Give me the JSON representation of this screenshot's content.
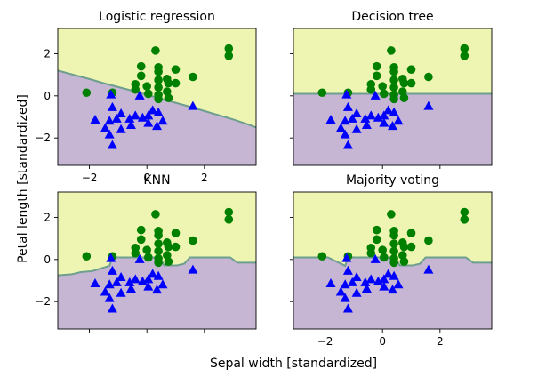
{
  "figure": {
    "xlabel": "Sepal width [standardized]",
    "ylabel": "Petal length [standardized]",
    "region_colors": {
      "upper": "#eef5b2",
      "lower": "#c6b6d4",
      "boundary": "#6e9e8e"
    },
    "marker_colors": {
      "class_circle": "#008000",
      "class_triangle": "#0000ff"
    }
  },
  "chart_data": [
    {
      "type": "scatter",
      "title": "Logistic regression",
      "xlim": [
        -3.1,
        3.8
      ],
      "ylim": [
        -3.3,
        3.2
      ],
      "xticks": [
        "−2",
        "0",
        "2"
      ],
      "yticks": [
        "2",
        "0",
        "−2"
      ],
      "decision_boundary": {
        "x": [
          -3.1,
          -2.5,
          -2.0,
          -1.5,
          -1.0,
          -0.5,
          0.0,
          0.5,
          1.0,
          1.5,
          2.0,
          2.5,
          3.0,
          3.5,
          3.8
        ],
        "y": [
          1.2,
          0.98,
          0.8,
          0.6,
          0.42,
          0.24,
          0.05,
          -0.14,
          -0.33,
          -0.52,
          -0.72,
          -0.92,
          -1.12,
          -1.35,
          -1.5
        ]
      },
      "series": [
        {
          "marker": "circle",
          "points": [
            [
              -2.1,
              0.15
            ],
            [
              -1.2,
              0.15
            ],
            [
              -0.4,
              0.3
            ],
            [
              -0.4,
              0.55
            ],
            [
              -0.2,
              1.4
            ],
            [
              -0.2,
              0.95
            ],
            [
              0.0,
              0.45
            ],
            [
              0.05,
              0.1
            ],
            [
              0.3,
              2.15
            ],
            [
              0.4,
              1.35
            ],
            [
              0.4,
              1.15
            ],
            [
              0.4,
              0.75
            ],
            [
              0.4,
              0.4
            ],
            [
              0.4,
              0.05
            ],
            [
              0.4,
              -0.15
            ],
            [
              0.7,
              0.8
            ],
            [
              0.7,
              0.2
            ],
            [
              0.75,
              0.6
            ],
            [
              0.75,
              -0.1
            ],
            [
              1.0,
              1.25
            ],
            [
              1.0,
              0.6
            ],
            [
              1.6,
              0.9
            ],
            [
              2.85,
              2.25
            ],
            [
              2.85,
              1.9
            ]
          ]
        },
        {
          "marker": "triangle",
          "points": [
            [
              -1.8,
              -1.15
            ],
            [
              -1.45,
              -1.55
            ],
            [
              -1.3,
              -1.2
            ],
            [
              -1.3,
              -1.85
            ],
            [
              -1.2,
              -2.35
            ],
            [
              -1.2,
              -0.55
            ],
            [
              -1.05,
              -1.1
            ],
            [
              -0.9,
              -0.85
            ],
            [
              -0.9,
              -1.6
            ],
            [
              -0.6,
              -1.1
            ],
            [
              -0.55,
              -1.4
            ],
            [
              -0.4,
              -0.95
            ],
            [
              -0.15,
              -1.05
            ],
            [
              0.05,
              -0.95
            ],
            [
              0.05,
              -1.3
            ],
            [
              0.2,
              -0.7
            ],
            [
              0.35,
              -1.45
            ],
            [
              0.4,
              -0.8
            ],
            [
              0.55,
              -1.2
            ],
            [
              1.6,
              -0.5
            ],
            [
              -1.25,
              0.05
            ],
            [
              -0.25,
              0.0
            ]
          ]
        }
      ]
    },
    {
      "type": "scatter",
      "title": "Decision tree",
      "xlim": [
        -3.1,
        3.8
      ],
      "ylim": [
        -3.3,
        3.2
      ],
      "xticks": [],
      "yticks": [],
      "decision_boundary": {
        "x": [
          -3.1,
          3.8
        ],
        "y": [
          0.1,
          0.1
        ]
      },
      "series": [
        {
          "marker": "circle",
          "points": [
            [
              -2.1,
              0.15
            ],
            [
              -1.2,
              0.15
            ],
            [
              -0.4,
              0.3
            ],
            [
              -0.4,
              0.55
            ],
            [
              -0.2,
              1.4
            ],
            [
              -0.2,
              0.95
            ],
            [
              0.0,
              0.45
            ],
            [
              0.05,
              0.1
            ],
            [
              0.3,
              2.15
            ],
            [
              0.4,
              1.35
            ],
            [
              0.4,
              1.15
            ],
            [
              0.4,
              0.75
            ],
            [
              0.4,
              0.4
            ],
            [
              0.4,
              0.05
            ],
            [
              0.4,
              -0.15
            ],
            [
              0.7,
              0.8
            ],
            [
              0.7,
              0.2
            ],
            [
              0.75,
              0.6
            ],
            [
              0.75,
              -0.1
            ],
            [
              1.0,
              1.25
            ],
            [
              1.0,
              0.6
            ],
            [
              1.6,
              0.9
            ],
            [
              2.85,
              2.25
            ],
            [
              2.85,
              1.9
            ]
          ]
        },
        {
          "marker": "triangle",
          "points": [
            [
              -1.8,
              -1.15
            ],
            [
              -1.45,
              -1.55
            ],
            [
              -1.3,
              -1.2
            ],
            [
              -1.3,
              -1.85
            ],
            [
              -1.2,
              -2.35
            ],
            [
              -1.2,
              -0.55
            ],
            [
              -1.05,
              -1.1
            ],
            [
              -0.9,
              -0.85
            ],
            [
              -0.9,
              -1.6
            ],
            [
              -0.6,
              -1.1
            ],
            [
              -0.55,
              -1.4
            ],
            [
              -0.4,
              -0.95
            ],
            [
              -0.15,
              -1.05
            ],
            [
              0.05,
              -0.95
            ],
            [
              0.05,
              -1.3
            ],
            [
              0.2,
              -0.7
            ],
            [
              0.35,
              -1.45
            ],
            [
              0.4,
              -0.8
            ],
            [
              0.55,
              -1.2
            ],
            [
              1.6,
              -0.5
            ],
            [
              -1.25,
              0.05
            ],
            [
              -0.25,
              0.0
            ]
          ]
        }
      ]
    },
    {
      "type": "scatter",
      "title": "KNN",
      "xlim": [
        -3.1,
        3.8
      ],
      "ylim": [
        -3.3,
        3.2
      ],
      "xticks": [],
      "yticks": [
        "2",
        "0",
        "−2"
      ],
      "decision_boundary": {
        "x": [
          -3.1,
          -2.6,
          -2.3,
          -1.9,
          -1.3,
          -1.2,
          -0.4,
          0.45,
          0.6,
          1.05,
          1.3,
          1.5,
          2.0,
          2.5,
          2.9,
          3.15,
          3.8
        ],
        "y": [
          -0.75,
          -0.7,
          -0.6,
          -0.55,
          -0.3,
          0.1,
          0.1,
          0.1,
          -0.28,
          -0.28,
          -0.2,
          0.1,
          0.1,
          0.1,
          0.1,
          -0.15,
          -0.15
        ]
      },
      "series": [
        {
          "marker": "circle",
          "points": [
            [
              -2.1,
              0.15
            ],
            [
              -1.2,
              0.15
            ],
            [
              -0.4,
              0.3
            ],
            [
              -0.4,
              0.55
            ],
            [
              -0.2,
              1.4
            ],
            [
              -0.2,
              0.95
            ],
            [
              0.0,
              0.45
            ],
            [
              0.05,
              0.1
            ],
            [
              0.3,
              2.15
            ],
            [
              0.4,
              1.35
            ],
            [
              0.4,
              1.15
            ],
            [
              0.4,
              0.75
            ],
            [
              0.4,
              0.4
            ],
            [
              0.4,
              0.05
            ],
            [
              0.4,
              -0.15
            ],
            [
              0.7,
              0.8
            ],
            [
              0.7,
              0.2
            ],
            [
              0.75,
              0.6
            ],
            [
              0.75,
              -0.1
            ],
            [
              1.0,
              1.25
            ],
            [
              1.0,
              0.6
            ],
            [
              1.6,
              0.9
            ],
            [
              2.85,
              2.25
            ],
            [
              2.85,
              1.9
            ]
          ]
        },
        {
          "marker": "triangle",
          "points": [
            [
              -1.8,
              -1.15
            ],
            [
              -1.45,
              -1.55
            ],
            [
              -1.3,
              -1.2
            ],
            [
              -1.3,
              -1.85
            ],
            [
              -1.2,
              -2.35
            ],
            [
              -1.2,
              -0.55
            ],
            [
              -1.05,
              -1.1
            ],
            [
              -0.9,
              -0.85
            ],
            [
              -0.9,
              -1.6
            ],
            [
              -0.6,
              -1.1
            ],
            [
              -0.55,
              -1.4
            ],
            [
              -0.4,
              -0.95
            ],
            [
              -0.15,
              -1.05
            ],
            [
              0.05,
              -0.95
            ],
            [
              0.05,
              -1.3
            ],
            [
              0.2,
              -0.7
            ],
            [
              0.35,
              -1.45
            ],
            [
              0.4,
              -0.8
            ],
            [
              0.55,
              -1.2
            ],
            [
              1.6,
              -0.5
            ],
            [
              -1.25,
              0.05
            ],
            [
              -0.25,
              0.0
            ]
          ]
        }
      ]
    },
    {
      "type": "scatter",
      "title": "Majority voting",
      "xlim": [
        -3.1,
        3.8
      ],
      "ylim": [
        -3.3,
        3.2
      ],
      "xticks": [
        "−2",
        "0",
        "2"
      ],
      "yticks": [],
      "decision_boundary": {
        "x": [
          -3.1,
          -2.3,
          -1.9,
          -1.3,
          -1.2,
          -0.4,
          0.45,
          0.6,
          1.05,
          1.3,
          1.5,
          2.0,
          2.5,
          2.9,
          3.15,
          3.8
        ],
        "y": [
          0.1,
          0.1,
          0.1,
          -0.3,
          0.1,
          0.1,
          0.1,
          -0.28,
          -0.28,
          -0.2,
          0.1,
          0.1,
          0.1,
          0.1,
          -0.15,
          -0.15
        ]
      },
      "series": [
        {
          "marker": "circle",
          "points": [
            [
              -2.1,
              0.15
            ],
            [
              -1.2,
              0.15
            ],
            [
              -0.4,
              0.3
            ],
            [
              -0.4,
              0.55
            ],
            [
              -0.2,
              1.4
            ],
            [
              -0.2,
              0.95
            ],
            [
              0.0,
              0.45
            ],
            [
              0.05,
              0.1
            ],
            [
              0.3,
              2.15
            ],
            [
              0.4,
              1.35
            ],
            [
              0.4,
              1.15
            ],
            [
              0.4,
              0.75
            ],
            [
              0.4,
              0.4
            ],
            [
              0.4,
              0.05
            ],
            [
              0.4,
              -0.15
            ],
            [
              0.7,
              0.8
            ],
            [
              0.7,
              0.2
            ],
            [
              0.75,
              0.6
            ],
            [
              0.75,
              -0.1
            ],
            [
              1.0,
              1.25
            ],
            [
              1.0,
              0.6
            ],
            [
              1.6,
              0.9
            ],
            [
              2.85,
              2.25
            ],
            [
              2.85,
              1.9
            ]
          ]
        },
        {
          "marker": "triangle",
          "points": [
            [
              -1.8,
              -1.15
            ],
            [
              -1.45,
              -1.55
            ],
            [
              -1.3,
              -1.2
            ],
            [
              -1.3,
              -1.85
            ],
            [
              -1.2,
              -2.35
            ],
            [
              -1.2,
              -0.55
            ],
            [
              -1.05,
              -1.1
            ],
            [
              -0.9,
              -0.85
            ],
            [
              -0.9,
              -1.6
            ],
            [
              -0.6,
              -1.1
            ],
            [
              -0.55,
              -1.4
            ],
            [
              -0.4,
              -0.95
            ],
            [
              -0.15,
              -1.05
            ],
            [
              0.05,
              -0.95
            ],
            [
              0.05,
              -1.3
            ],
            [
              0.2,
              -0.7
            ],
            [
              0.35,
              -1.45
            ],
            [
              0.4,
              -0.8
            ],
            [
              0.55,
              -1.2
            ],
            [
              1.6,
              -0.5
            ],
            [
              -1.25,
              0.05
            ],
            [
              -0.25,
              0.0
            ]
          ]
        }
      ]
    }
  ]
}
